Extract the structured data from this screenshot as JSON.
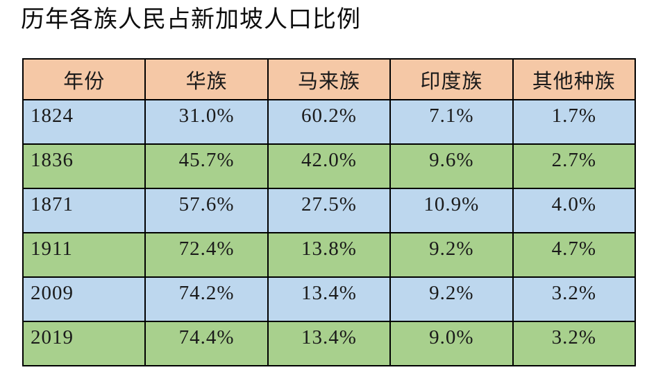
{
  "title": "历年各族人民占新加坡人口比例",
  "table": {
    "headers": [
      "年份",
      "华族",
      "马来族",
      "印度族",
      "其他种族"
    ],
    "rows": [
      {
        "year": "1824",
        "values": [
          "31.0%",
          "60.2%",
          "7.1%",
          "1.7%"
        ]
      },
      {
        "year": "1836",
        "values": [
          "45.7%",
          "42.0%",
          "9.6%",
          "2.7%"
        ]
      },
      {
        "year": "1871",
        "values": [
          "57.6%",
          "27.5%",
          "10.9%",
          "4.0%"
        ]
      },
      {
        "year": "1911",
        "values": [
          "72.4%",
          "13.8%",
          "9.2%",
          "4.7%"
        ]
      },
      {
        "year": "2009",
        "values": [
          "74.2%",
          "13.4%",
          "9.2%",
          "3.2%"
        ]
      },
      {
        "year": "2019",
        "values": [
          "74.4%",
          "13.4%",
          "9.0%",
          "3.2%"
        ]
      }
    ]
  },
  "colors": {
    "header_bg": "#F5C8A6",
    "row_blue": "#BDD7EE",
    "row_green": "#A8D08D",
    "border": "#000000",
    "text": "#1A1A1A"
  },
  "chart_data": {
    "type": "table",
    "title": "历年各族人民占新加坡人口比例",
    "categories": [
      "1824",
      "1836",
      "1871",
      "1911",
      "2009",
      "2019"
    ],
    "series": [
      {
        "name": "华族",
        "values": [
          31.0,
          45.7,
          57.6,
          72.4,
          74.2,
          74.4
        ]
      },
      {
        "name": "马来族",
        "values": [
          60.2,
          42.0,
          27.5,
          13.8,
          13.4,
          13.4
        ]
      },
      {
        "name": "印度族",
        "values": [
          7.1,
          9.6,
          10.9,
          9.2,
          9.2,
          9.0
        ]
      },
      {
        "name": "其他种族",
        "values": [
          1.7,
          2.7,
          4.0,
          4.7,
          3.2,
          3.2
        ]
      }
    ],
    "unit": "%",
    "xlabel": "年份",
    "ylabel": ""
  }
}
